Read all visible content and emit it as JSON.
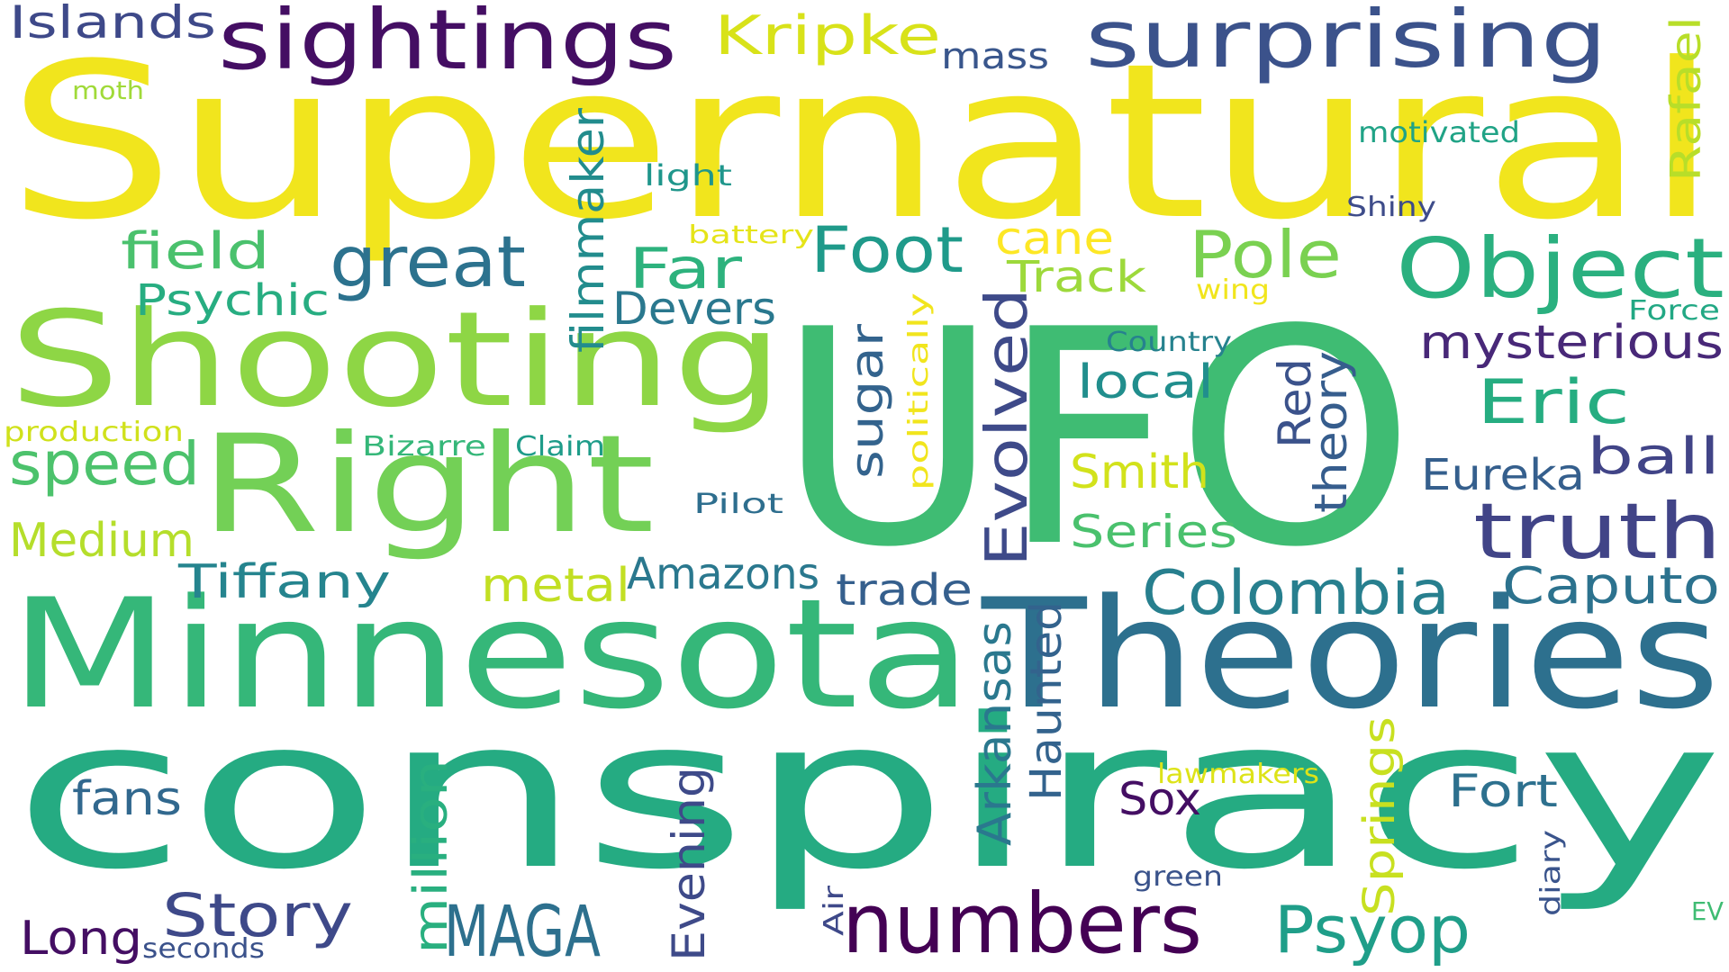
{
  "words": [
    {
      "text": "Supernatural",
      "color": "#f1e51d"
    },
    {
      "text": "UFO",
      "color": "#3fbc73"
    },
    {
      "text": "conspiracy",
      "color": "#25ab82"
    },
    {
      "text": "Minnesota",
      "color": "#35b779"
    },
    {
      "text": "Theories",
      "color": "#2d708e"
    },
    {
      "text": "Shooting",
      "color": "#8ed645"
    },
    {
      "text": "Right",
      "color": "#73d056"
    },
    {
      "text": "sightings",
      "color": "#440e63"
    },
    {
      "text": "surprising",
      "color": "#3b528b"
    },
    {
      "text": "Islands",
      "color": "#3e4989"
    },
    {
      "text": "Kripke",
      "color": "#d8e219"
    },
    {
      "text": "mass",
      "color": "#39568c"
    },
    {
      "text": "Rafael",
      "color": "#b8de29"
    },
    {
      "text": "moth",
      "color": "#a0da39"
    },
    {
      "text": "motivated",
      "color": "#20a386"
    },
    {
      "text": "light",
      "color": "#1f968b"
    },
    {
      "text": "Shiny",
      "color": "#3e4c8a"
    },
    {
      "text": "battery",
      "color": "#e5e419"
    },
    {
      "text": "field",
      "color": "#4ac16d"
    },
    {
      "text": "great",
      "color": "#2c728e"
    },
    {
      "text": "filmmaker",
      "color": "#228c8d"
    },
    {
      "text": "Far",
      "color": "#2db27d"
    },
    {
      "text": "Foot",
      "color": "#1f9a8a"
    },
    {
      "text": "cane",
      "color": "#fde725"
    },
    {
      "text": "Track",
      "color": "#9dd93b"
    },
    {
      "text": "Pole",
      "color": "#7ad151"
    },
    {
      "text": "Object",
      "color": "#2ab07f"
    },
    {
      "text": "Psychic",
      "color": "#27ad81"
    },
    {
      "text": "Devers",
      "color": "#2a788e"
    },
    {
      "text": "wing",
      "color": "#f1e51d"
    },
    {
      "text": "Force",
      "color": "#22a884"
    },
    {
      "text": "Country",
      "color": "#26828e"
    },
    {
      "text": "mysterious",
      "color": "#482878"
    },
    {
      "text": "politically",
      "color": "#f1e51d"
    },
    {
      "text": "sugar",
      "color": "#33638d"
    },
    {
      "text": "Evolved",
      "color": "#3e4a89"
    },
    {
      "text": "local",
      "color": "#218e8d"
    },
    {
      "text": "Eric",
      "color": "#26ad81"
    },
    {
      "text": "production",
      "color": "#d0e11c"
    },
    {
      "text": "speed",
      "color": "#4cc26c"
    },
    {
      "text": "Bizarre",
      "color": "#35b779"
    },
    {
      "text": "Claim",
      "color": "#1e9c89"
    },
    {
      "text": "Red",
      "color": "#3b528b"
    },
    {
      "text": "theory",
      "color": "#365d8d"
    },
    {
      "text": "ball",
      "color": "#414487"
    },
    {
      "text": "Eureka",
      "color": "#355f8d"
    },
    {
      "text": "Smith",
      "color": "#d2e21b"
    },
    {
      "text": "Pilot",
      "color": "#2e6e8e"
    },
    {
      "text": "truth",
      "color": "#414487"
    },
    {
      "text": "Medium",
      "color": "#b5de2b"
    },
    {
      "text": "Series",
      "color": "#4ac16d"
    },
    {
      "text": "Tiffany",
      "color": "#25848e"
    },
    {
      "text": "metal",
      "color": "#c2df23"
    },
    {
      "text": "Amazons",
      "color": "#2a788e"
    },
    {
      "text": "trade",
      "color": "#355f8d"
    },
    {
      "text": "Colombia",
      "color": "#277f8e"
    },
    {
      "text": "Caputo",
      "color": "#2c728e"
    },
    {
      "text": "Arkansas",
      "color": "#2a788e"
    },
    {
      "text": "Haunted",
      "color": "#33638d"
    },
    {
      "text": "Springs",
      "color": "#c8e020"
    },
    {
      "text": "lawmakers",
      "color": "#dde318"
    },
    {
      "text": "fans",
      "color": "#31688e"
    },
    {
      "text": "million",
      "color": "#29af7f"
    },
    {
      "text": "Evening",
      "color": "#3e4a89"
    },
    {
      "text": "Sox",
      "color": "#440e63"
    },
    {
      "text": "Fort",
      "color": "#2d708e"
    },
    {
      "text": "diary",
      "color": "#3a548c"
    },
    {
      "text": "green",
      "color": "#3a538b"
    },
    {
      "text": "Story",
      "color": "#3e4989"
    },
    {
      "text": "MAGA",
      "color": "#2d708e"
    },
    {
      "text": "numbers",
      "color": "#440154"
    },
    {
      "text": "Psyop",
      "color": "#1f9e89"
    },
    {
      "text": "Long",
      "color": "#440e63"
    },
    {
      "text": "seconds",
      "color": "#3b528b"
    },
    {
      "text": "Air",
      "color": "#3e4989"
    },
    {
      "text": "EV",
      "color": "#3fbc73"
    }
  ]
}
